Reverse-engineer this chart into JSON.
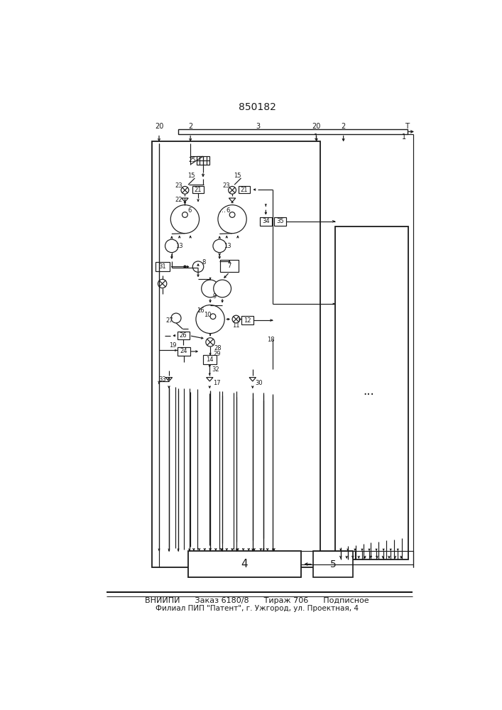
{
  "title": "850182",
  "bg": "#ffffff",
  "lc": "#1a1a1a",
  "footer_line1": "ВНИИПИ      Заказ 6180/8      Тираж 706      Подписное",
  "footer_line2": "Филиал ПИП \"Патент\", г. Ужгород, ул. Проектная, 4"
}
